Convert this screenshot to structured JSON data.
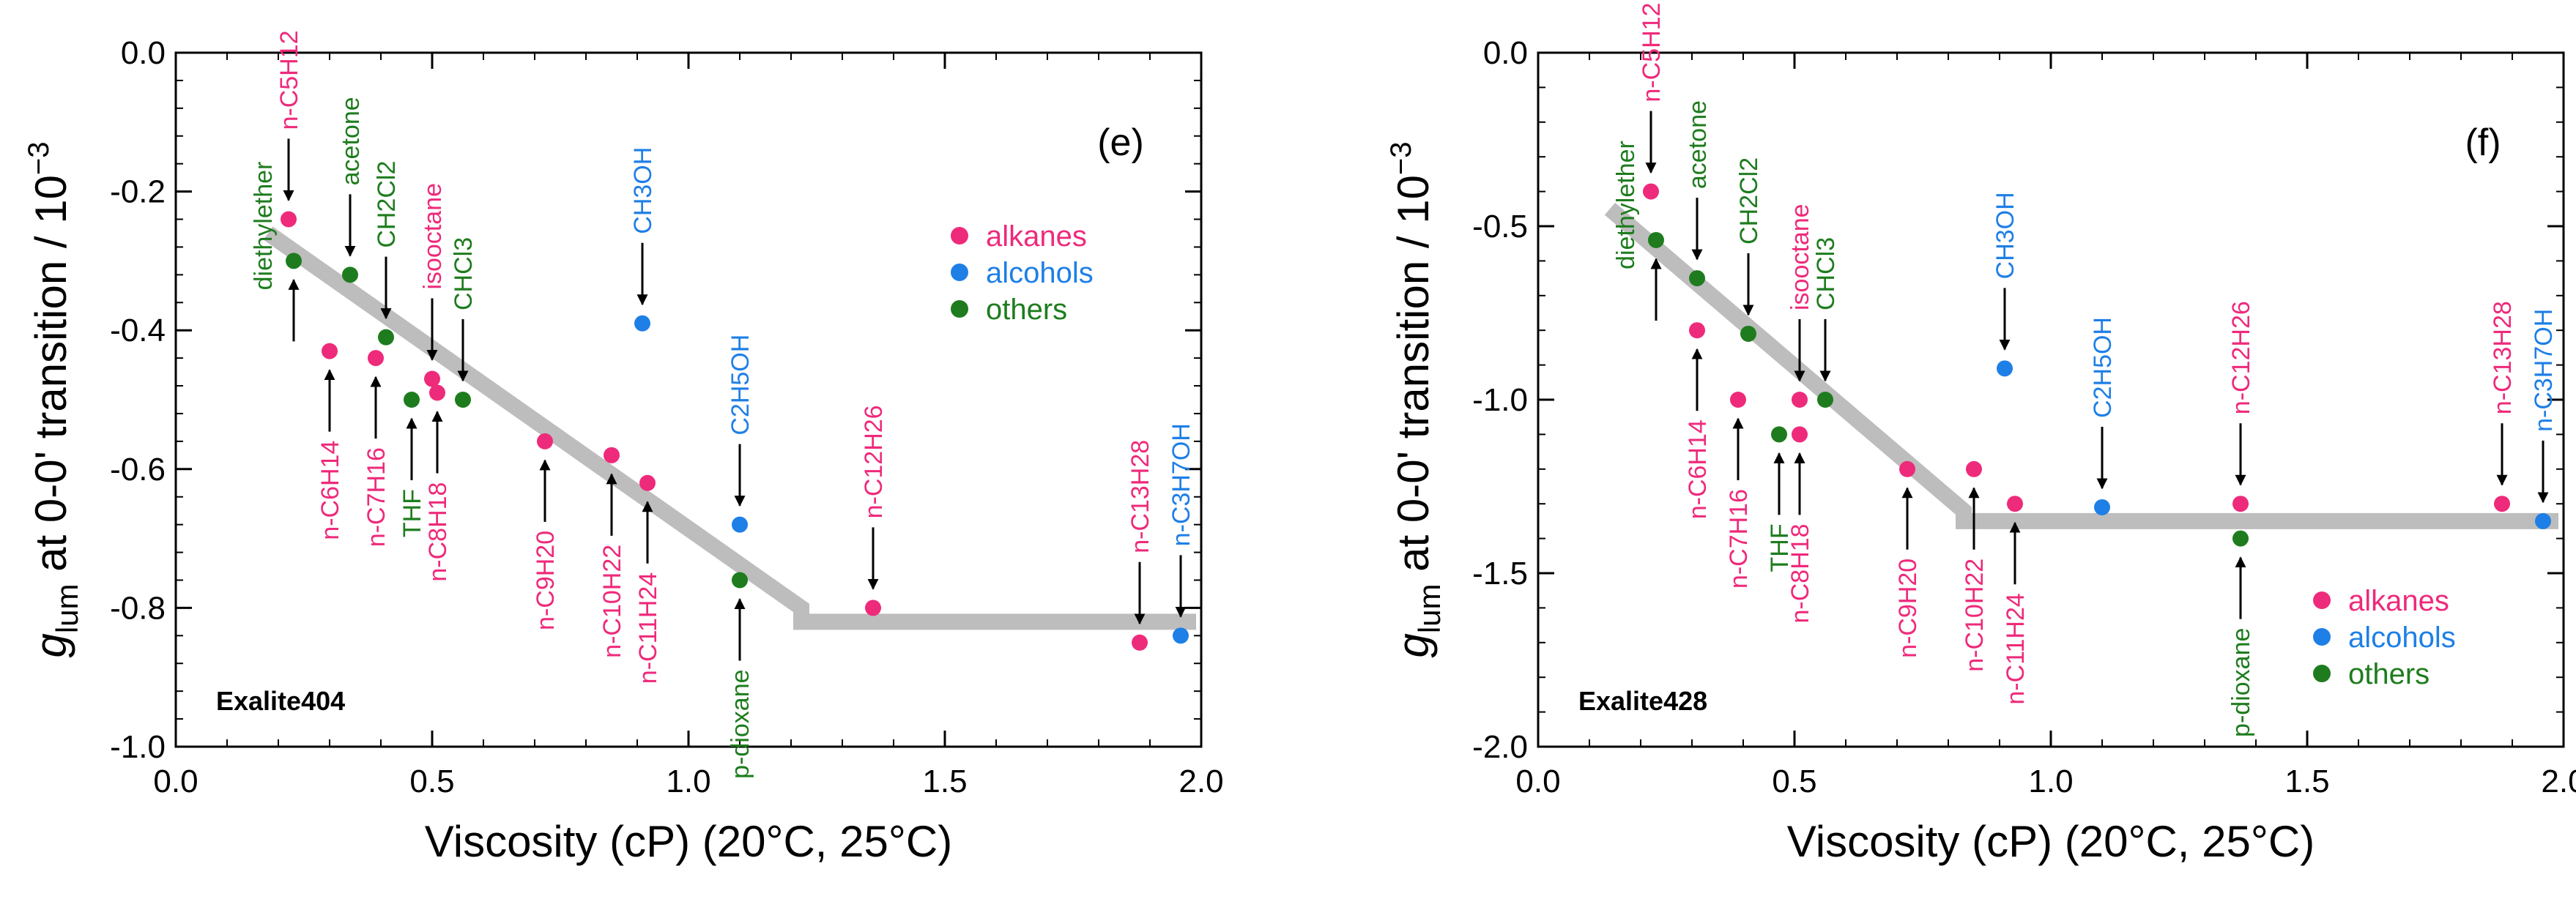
{
  "colors": {
    "alkanes": "#ee2a7b",
    "alcohols": "#1e7fe6",
    "others": "#1e7c1e",
    "trend": "#bdbdbd"
  },
  "chart_data": [
    {
      "type": "scatter",
      "panel": "(e)",
      "sample": "Exalite404",
      "xlabel": "Viscosity (cP) (20°C, 25°C)",
      "ylabel_main": "g",
      "ylabel_sub": "lum",
      "ylabel_rest": " at 0-0' transition / 10",
      "ylabel_exp": "−3",
      "xlim": [
        0.0,
        2.0
      ],
      "ylim": [
        -1.0,
        0.0
      ],
      "xticks": [
        0.0,
        0.5,
        1.0,
        1.5,
        2.0
      ],
      "xtick_labels": [
        "0.0",
        "0.5",
        "1.0",
        "1.5",
        "2.0"
      ],
      "yticks": [
        0.0,
        -0.2,
        -0.4,
        -0.6,
        -0.8,
        -1.0
      ],
      "ytick_labels": [
        "0.0",
        "-0.2",
        "-0.4",
        "-0.6",
        "-0.8",
        "-1.0"
      ],
      "legend": {
        "position": "upper-right",
        "entries": [
          {
            "label": "alkanes",
            "color": "#ee2a7b"
          },
          {
            "label": "alcohols",
            "color": "#1e7fe6"
          },
          {
            "label": "others",
            "color": "#1e7c1e"
          }
        ]
      },
      "trend_line": [
        [
          0.18,
          -0.26
        ],
        [
          1.22,
          -0.8
        ],
        [
          1.22,
          -0.82
        ],
        [
          1.99,
          -0.82
        ]
      ],
      "points": [
        {
          "solvent": "n-C5H12",
          "x": 0.22,
          "y": -0.24,
          "group": "alkanes",
          "arrow": "down",
          "label_side": "above"
        },
        {
          "solvent": "diethylether",
          "x": 0.23,
          "y": -0.3,
          "group": "others",
          "arrow": "up",
          "label_side": "left"
        },
        {
          "solvent": "acetone",
          "x": 0.34,
          "y": -0.32,
          "group": "others",
          "arrow": "down",
          "label_side": "above"
        },
        {
          "solvent": "CH2Cl2",
          "x": 0.41,
          "y": -0.41,
          "group": "others",
          "arrow": "down",
          "label_side": "above"
        },
        {
          "solvent": "n-C6H14",
          "x": 0.3,
          "y": -0.43,
          "group": "alkanes",
          "arrow": "up",
          "label_side": "below"
        },
        {
          "solvent": "n-C7H16",
          "x": 0.39,
          "y": -0.44,
          "group": "alkanes",
          "arrow": "up",
          "label_side": "below"
        },
        {
          "solvent": "isooctane",
          "x": 0.5,
          "y": -0.47,
          "group": "alkanes",
          "arrow": "down",
          "label_side": "above"
        },
        {
          "solvent": "THF",
          "x": 0.46,
          "y": -0.5,
          "group": "others",
          "arrow": "up",
          "label_side": "below"
        },
        {
          "solvent": "n-C8H18",
          "x": 0.51,
          "y": -0.49,
          "group": "alkanes",
          "arrow": "up",
          "label_side": "below"
        },
        {
          "solvent": "CHCl3",
          "x": 0.56,
          "y": -0.5,
          "group": "others",
          "arrow": "down",
          "label_side": "above"
        },
        {
          "solvent": "CH3OH",
          "x": 0.91,
          "y": -0.39,
          "group": "alcohols",
          "arrow": "down",
          "label_side": "above"
        },
        {
          "solvent": "n-C9H20",
          "x": 0.72,
          "y": -0.56,
          "group": "alkanes",
          "arrow": "up",
          "label_side": "below"
        },
        {
          "solvent": "n-C10H22",
          "x": 0.85,
          "y": -0.58,
          "group": "alkanes",
          "arrow": "up",
          "label_side": "below"
        },
        {
          "solvent": "n-C11H24",
          "x": 0.92,
          "y": -0.62,
          "group": "alkanes",
          "arrow": "up",
          "label_side": "below"
        },
        {
          "solvent": "C2H5OH",
          "x": 1.1,
          "y": -0.68,
          "group": "alcohols",
          "arrow": "down",
          "label_side": "above"
        },
        {
          "solvent": "p-dioxane",
          "x": 1.1,
          "y": -0.76,
          "group": "others",
          "arrow": "up",
          "label_side": "below"
        },
        {
          "solvent": "n-C12H26",
          "x": 1.36,
          "y": -0.8,
          "group": "alkanes",
          "arrow": "down",
          "label_side": "above"
        },
        {
          "solvent": "n-C13H28",
          "x": 1.88,
          "y": -0.85,
          "group": "alkanes",
          "arrow": "down",
          "label_side": "above"
        },
        {
          "solvent": "n-C3H7OH",
          "x": 1.96,
          "y": -0.84,
          "group": "alcohols",
          "arrow": "down",
          "label_side": "above"
        }
      ]
    },
    {
      "type": "scatter",
      "panel": "(f)",
      "sample": "Exalite428",
      "xlabel": "Viscosity (cP) (20°C, 25°C)",
      "ylabel_main": "g",
      "ylabel_sub": "lum",
      "ylabel_rest": " at 0-0' transition / 10",
      "ylabel_exp": "−3",
      "xlim": [
        0.0,
        2.0
      ],
      "ylim": [
        -2.0,
        0.0
      ],
      "xticks": [
        0.0,
        0.5,
        1.0,
        1.5,
        2.0
      ],
      "xtick_labels": [
        "0.0",
        "0.5",
        "1.0",
        "1.5",
        "2.0"
      ],
      "yticks": [
        0.0,
        -0.5,
        -1.0,
        -1.5,
        -2.0
      ],
      "ytick_labels": [
        "0.0",
        "-0.5",
        "-1.0",
        "-1.5",
        "-2.0"
      ],
      "legend": {
        "position": "lower-right",
        "entries": [
          {
            "label": "alkanes",
            "color": "#ee2a7b"
          },
          {
            "label": "alcohols",
            "color": "#1e7fe6"
          },
          {
            "label": "others",
            "color": "#1e7c1e"
          }
        ]
      },
      "trend_line": [
        [
          0.14,
          -0.45
        ],
        [
          0.83,
          -1.32
        ],
        [
          0.83,
          -1.35
        ],
        [
          1.99,
          -1.35
        ]
      ],
      "points": [
        {
          "solvent": "n-C5H12",
          "x": 0.22,
          "y": -0.4,
          "group": "alkanes",
          "arrow": "down",
          "label_side": "above"
        },
        {
          "solvent": "diethylether",
          "x": 0.23,
          "y": -0.54,
          "group": "others",
          "arrow": "up",
          "label_side": "left"
        },
        {
          "solvent": "acetone",
          "x": 0.31,
          "y": -0.65,
          "group": "others",
          "arrow": "down",
          "label_side": "above"
        },
        {
          "solvent": "n-C6H14",
          "x": 0.31,
          "y": -0.8,
          "group": "alkanes",
          "arrow": "up",
          "label_side": "below"
        },
        {
          "solvent": "CH2Cl2",
          "x": 0.41,
          "y": -0.81,
          "group": "others",
          "arrow": "down",
          "label_side": "above"
        },
        {
          "solvent": "n-C7H16",
          "x": 0.39,
          "y": -1.0,
          "group": "alkanes",
          "arrow": "up",
          "label_side": "below"
        },
        {
          "solvent": "isooctane",
          "x": 0.51,
          "y": -1.0,
          "group": "alkanes",
          "arrow": "down",
          "label_side": "above"
        },
        {
          "solvent": "CHCl3",
          "x": 0.56,
          "y": -1.0,
          "group": "others",
          "arrow": "down",
          "label_side": "above"
        },
        {
          "solvent": "THF",
          "x": 0.47,
          "y": -1.1,
          "group": "others",
          "arrow": "up",
          "label_side": "below"
        },
        {
          "solvent": "n-C8H18",
          "x": 0.51,
          "y": -1.1,
          "group": "alkanes",
          "arrow": "up",
          "label_side": "below"
        },
        {
          "solvent": "CH3OH",
          "x": 0.91,
          "y": -0.91,
          "group": "alcohols",
          "arrow": "down",
          "label_side": "above"
        },
        {
          "solvent": "n-C9H20",
          "x": 0.72,
          "y": -1.2,
          "group": "alkanes",
          "arrow": "up",
          "label_side": "below"
        },
        {
          "solvent": "n-C10H22",
          "x": 0.85,
          "y": -1.2,
          "group": "alkanes",
          "arrow": "up",
          "label_side": "below"
        },
        {
          "solvent": "n-C11H24",
          "x": 0.93,
          "y": -1.3,
          "group": "alkanes",
          "arrow": "up",
          "label_side": "below"
        },
        {
          "solvent": "C2H5OH",
          "x": 1.1,
          "y": -1.31,
          "group": "alcohols",
          "arrow": "down",
          "label_side": "above"
        },
        {
          "solvent": "n-C12H26",
          "x": 1.37,
          "y": -1.3,
          "group": "alkanes",
          "arrow": "down",
          "label_side": "above"
        },
        {
          "solvent": "p-dioxane",
          "x": 1.37,
          "y": -1.4,
          "group": "others",
          "arrow": "up",
          "label_side": "below"
        },
        {
          "solvent": "n-C13H28",
          "x": 1.88,
          "y": -1.3,
          "group": "alkanes",
          "arrow": "down",
          "label_side": "above"
        },
        {
          "solvent": "n-C3H7OH",
          "x": 1.96,
          "y": -1.35,
          "group": "alcohols",
          "arrow": "down",
          "label_side": "above"
        }
      ]
    }
  ]
}
